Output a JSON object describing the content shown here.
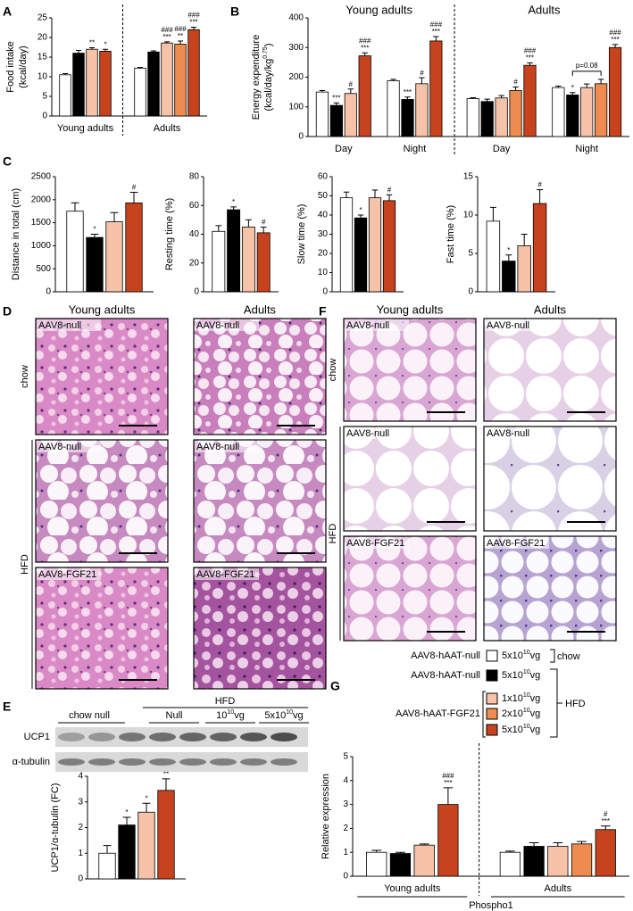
{
  "panels": [
    "A",
    "B",
    "C",
    "D",
    "E",
    "F",
    "G"
  ],
  "chart_data": [
    {
      "type": "bar",
      "ylabel": [
        "Food intake",
        "(kcal/day)"
      ],
      "ylim": [
        0,
        25
      ],
      "yticks": [
        0,
        5,
        10,
        15,
        20,
        25
      ],
      "separator": true,
      "section_labels": "bottom",
      "sections": [
        {
          "label": "Young adults",
          "groups": [
            {
              "values": [
                10.5,
                16,
                17,
                16.5
              ],
              "errors": [
                0.3,
                0.7,
                0.4,
                0.5
              ],
              "colors": [
                "#ffffff",
                "#000000",
                "#f6c3a8",
                "#c6431d"
              ],
              "sig": [
                [],
                [],
                [
                  "**"
                ],
                [
                  "*"
                ]
              ]
            }
          ]
        },
        {
          "label": "Adults",
          "groups": [
            {
              "values": [
                12.2,
                16.3,
                18.6,
                18.3,
                22
              ],
              "errors": [
                0.2,
                0.3,
                0.3,
                0.8,
                0.6
              ],
              "colors": [
                "#ffffff",
                "#000000",
                "#f6c3a8",
                "#ee8b4e",
                "#c6431d"
              ],
              "sig": [
                [],
                [],
                [
                  "###",
                  "***"
                ],
                [
                  "###",
                  "**"
                ],
                [
                  "###",
                  "***"
                ]
              ]
            }
          ]
        }
      ]
    },
    {
      "type": "bar",
      "ylabel": [
        "Energy expenditure",
        {
          "text": "(kcal/day/kg",
          "sup": "0.75",
          "end": ")"
        }
      ],
      "ylim": [
        0,
        400
      ],
      "yticks": [
        0,
        100,
        200,
        300,
        400
      ],
      "separator": true,
      "section_labels": "top",
      "sections": [
        {
          "label": "Young adults",
          "groups": [
            {
              "label": "Day",
              "values": [
                150,
                105,
                145,
                272
              ],
              "errors": [
                5,
                8,
                15,
                10
              ],
              "colors": [
                "#ffffff",
                "#000000",
                "#f6c3a8",
                "#c6431d"
              ],
              "sig": [
                [],
                [
                  "***"
                ],
                [
                  "#"
                ],
                [
                  "###",
                  "***"
                ]
              ]
            },
            {
              "label": "Night",
              "values": [
                188,
                125,
                178,
                322
              ],
              "errors": [
                5,
                8,
                20,
                15
              ],
              "colors": [
                "#ffffff",
                "#000000",
                "#f6c3a8",
                "#c6431d"
              ],
              "sig": [
                [],
                [
                  "***"
                ],
                [
                  "#"
                ],
                [
                  "###",
                  "***"
                ]
              ]
            }
          ]
        },
        {
          "label": "Adults",
          "groups": [
            {
              "label": "Day",
              "values": [
                128,
                118,
                130,
                155,
                240
              ],
              "errors": [
                3,
                8,
                8,
                12,
                8
              ],
              "colors": [
                "#ffffff",
                "#000000",
                "#f6c3a8",
                "#ee8b4e",
                "#c6431d"
              ],
              "sig": [
                [],
                [],
                [],
                [
                  "#"
                ],
                [
                  "###",
                  "***"
                ]
              ]
            },
            {
              "label": "Night",
              "values": [
                165,
                140,
                165,
                178,
                300
              ],
              "errors": [
                5,
                8,
                12,
                15,
                10
              ],
              "colors": [
                "#ffffff",
                "#000000",
                "#f6c3a8",
                "#ee8b4e",
                "#c6431d"
              ],
              "sig": [
                [],
                [
                  "*"
                ],
                [],
                [],
                [
                  "###",
                  "***"
                ]
              ],
              "bracket": "p=0.08"
            }
          ]
        }
      ]
    },
    {
      "type": "bar",
      "ylabel": [
        "Distance in total (cm)"
      ],
      "ylim": [
        0,
        2500
      ],
      "yticks": [
        0,
        500,
        1000,
        1500,
        2000,
        2500
      ],
      "sections": [
        {
          "groups": [
            {
              "values": [
                1750,
                1180,
                1520,
                1930
              ],
              "errors": [
                180,
                70,
                200,
                230
              ],
              "colors": [
                "#ffffff",
                "#000000",
                "#f6c3a8",
                "#c6431d"
              ],
              "sig": [
                [],
                [
                  "*"
                ],
                [],
                [
                  "#"
                ]
              ]
            }
          ]
        }
      ]
    },
    {
      "type": "bar",
      "ylabel": [
        "Resting time (%)"
      ],
      "ylim": [
        0,
        80
      ],
      "yticks": [
        0,
        20,
        40,
        60,
        80
      ],
      "sections": [
        {
          "groups": [
            {
              "values": [
                42,
                57,
                45,
                41
              ],
              "errors": [
                4,
                2,
                5,
                4
              ],
              "colors": [
                "#ffffff",
                "#000000",
                "#f6c3a8",
                "#c6431d"
              ],
              "sig": [
                [],
                [
                  "*"
                ],
                [],
                [
                  "#"
                ]
              ]
            }
          ]
        }
      ]
    },
    {
      "type": "bar",
      "ylabel": [
        "Slow time (%)"
      ],
      "ylim": [
        0,
        60
      ],
      "yticks": [
        0,
        10,
        20,
        30,
        40,
        50,
        60
      ],
      "sections": [
        {
          "groups": [
            {
              "values": [
                49,
                38.5,
                49,
                47.5
              ],
              "errors": [
                3,
                1.5,
                4,
                3
              ],
              "colors": [
                "#ffffff",
                "#000000",
                "#f6c3a8",
                "#c6431d"
              ],
              "sig": [
                [],
                [
                  "*"
                ],
                [],
                [
                  "#"
                ]
              ]
            }
          ]
        }
      ]
    },
    {
      "type": "bar",
      "ylabel": [
        "Fast time (%)"
      ],
      "ylim": [
        0,
        15
      ],
      "yticks": [
        0,
        5,
        10,
        15
      ],
      "sections": [
        {
          "groups": [
            {
              "values": [
                9.2,
                4,
                6,
                11.5
              ],
              "errors": [
                1.8,
                0.8,
                1.5,
                1.8
              ],
              "colors": [
                "#ffffff",
                "#000000",
                "#f6c3a8",
                "#c6431d"
              ],
              "sig": [
                [],
                [
                  "*"
                ],
                [],
                [
                  "#"
                ]
              ]
            }
          ]
        }
      ]
    },
    {
      "type": "bar",
      "ylabel": [
        "UCP1/α-tubulin (FC)"
      ],
      "ylim": [
        0,
        4
      ],
      "yticks": [
        0,
        1,
        2,
        3,
        4
      ],
      "sections": [
        {
          "groups": [
            {
              "values": [
                1,
                2.1,
                2.6,
                3.45
              ],
              "errors": [
                0.3,
                0.3,
                0.35,
                0.45
              ],
              "colors": [
                "#ffffff",
                "#000000",
                "#f6c3a8",
                "#c6431d"
              ],
              "sig": [
                [],
                [
                  "*"
                ],
                [
                  "*"
                ],
                [
                  "#",
                  "**"
                ]
              ]
            }
          ]
        }
      ]
    },
    {
      "type": "bar",
      "ylabel": [
        "Relative expression"
      ],
      "xlabel": "Phospho1",
      "ylim": [
        0,
        5
      ],
      "yticks": [
        0,
        1,
        2,
        3,
        4,
        5
      ],
      "separator": true,
      "section_labels": "bottom",
      "sections": [
        {
          "label": "Young adults",
          "groups": [
            {
              "values": [
                1,
                0.95,
                1.3,
                3
              ],
              "errors": [
                0.08,
                0.05,
                0.05,
                0.7
              ],
              "colors": [
                "#ffffff",
                "#000000",
                "#f6c3a8",
                "#c6431d"
              ],
              "sig": [
                [],
                [],
                [],
                [
                  "###",
                  "***"
                ]
              ]
            }
          ]
        },
        {
          "label": "Adults",
          "groups": [
            {
              "values": [
                1,
                1.25,
                1.25,
                1.35,
                1.95
              ],
              "errors": [
                0.05,
                0.15,
                0.15,
                0.1,
                0.15
              ],
              "colors": [
                "#ffffff",
                "#000000",
                "#f6c3a8",
                "#ee8b4e",
                "#c6431d"
              ],
              "sig": [
                [],
                [],
                [],
                [],
                [
                  "#",
                  "***"
                ]
              ]
            }
          ]
        }
      ]
    }
  ],
  "histology": [
    {
      "columns": [
        "Young adults",
        "Adults"
      ],
      "row_labels": [
        "chow",
        "HFD"
      ],
      "tiles": [
        [
          "AAV8-null",
          "AAV8-null"
        ],
        [
          "AAV8-null",
          "AAV8-null"
        ],
        [
          "AAV8-FGF21",
          "AAV8-FGF21"
        ]
      ]
    },
    {
      "columns": [
        "Young adults",
        "Adults"
      ],
      "row_labels": [
        "chow",
        "HFD"
      ],
      "tiles": [
        [
          "AAV8-null",
          "AAV8-null"
        ],
        [
          "AAV8-null",
          "AAV8-null"
        ],
        [
          "AAV8-FGF21",
          "AAV8-FGF21"
        ]
      ]
    }
  ],
  "western": {
    "group_label": "HFD",
    "lanes": [
      "chow null",
      "Null",
      [
        "10",
        "10",
        "vg"
      ],
      [
        "5x10",
        "10",
        "vg"
      ]
    ],
    "rows": [
      "UCP1",
      "α-tubulin"
    ]
  },
  "legend": {
    "entries": [
      {
        "name": "AAV8-hAAT-null",
        "color": "#ffffff",
        "dose": [
          "5x10",
          "10",
          "vg"
        ]
      },
      {
        "name": "AAV8-hAAT-null",
        "color": "#000000",
        "dose": [
          "5x10",
          "10",
          "vg"
        ]
      },
      {
        "color": "#f6c3a8",
        "dose": [
          "1x10",
          "10",
          "vg"
        ]
      },
      {
        "name": "AAV8-hAAT-FGF21",
        "color": "#ee8b4e",
        "dose": [
          "2x10",
          "10",
          "vg"
        ]
      },
      {
        "color": "#c6431d",
        "dose": [
          "5x10",
          "10",
          "vg"
        ]
      }
    ],
    "chow": "chow",
    "hfd": "HFD"
  }
}
